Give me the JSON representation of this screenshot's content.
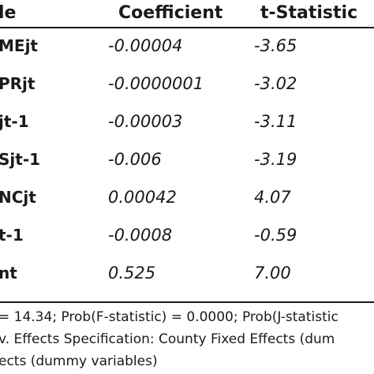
{
  "table": {
    "headers": {
      "variable": "le",
      "coefficient": "Coefficient",
      "t_statistic": "t-Statistic"
    },
    "rows": [
      {
        "variable": "MEjt",
        "coefficient": "-0.00004",
        "t_statistic": "-3.65"
      },
      {
        "variable": "PRjt",
        "coefficient": "-0.0000001",
        "t_statistic": "-3.02"
      },
      {
        "variable": "jt-1",
        "coefficient": "-0.00003",
        "t_statistic": "-3.11"
      },
      {
        "variable": "Sjt-1",
        "coefficient": "-0.006",
        "t_statistic": "-3.19"
      },
      {
        "variable": "NCjt",
        "coefficient": "0.00042",
        "t_statistic": "4.07"
      },
      {
        "variable": "t-1",
        "coefficient": "-0.0008",
        "t_statistic": "-0.59"
      },
      {
        "variable": "nt",
        "coefficient": "0.525",
        "t_statistic": "7.00"
      }
    ],
    "notes": [
      "= 14.34; Prob(F-statistic) = 0.0000; Prob(J-statistic",
      "v. Effects Specification: County Fixed Effects (dum",
      "ects (dummy variables)"
    ]
  }
}
